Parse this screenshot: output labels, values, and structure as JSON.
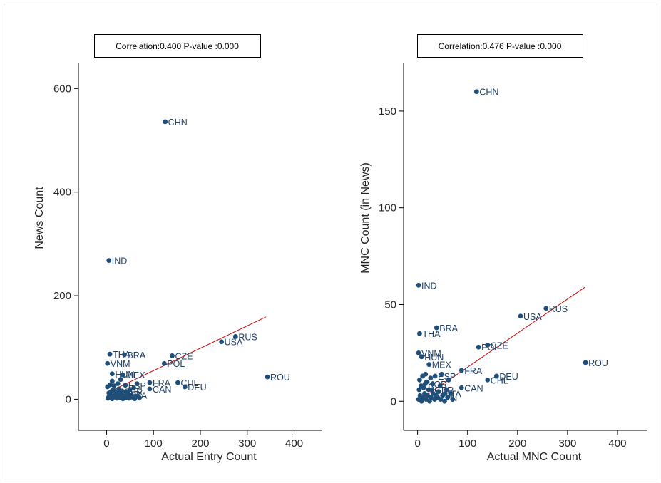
{
  "chart_data": [
    {
      "type": "scatter",
      "title": "",
      "annotation": "Correlation:0.400 P-value :0.000",
      "xlabel": "Actual Entry Count",
      "ylabel": "News Count",
      "xlim": [
        -60,
        460
      ],
      "ylim": [
        -60,
        650
      ],
      "xticks": [
        0,
        100,
        200,
        300,
        400
      ],
      "yticks": [
        0,
        200,
        400,
        600
      ],
      "grid": false,
      "marker_color": "#1f4e79",
      "fit_color": "#cc0000",
      "fit_line": {
        "x": [
          0,
          340
        ],
        "y": [
          12,
          159
        ]
      },
      "points": [
        {
          "label": "CHN",
          "x": 125,
          "y": 536
        },
        {
          "label": "IND",
          "x": 5,
          "y": 268
        },
        {
          "label": "RUS",
          "x": 275,
          "y": 121
        },
        {
          "label": "USA",
          "x": 245,
          "y": 111
        },
        {
          "label": "CZE",
          "x": 140,
          "y": 84
        },
        {
          "label": "THA",
          "x": 7,
          "y": 87
        },
        {
          "label": "BRA",
          "x": 38,
          "y": 86
        },
        {
          "label": "POL",
          "x": 123,
          "y": 69
        },
        {
          "label": "VNM",
          "x": 2,
          "y": 69
        },
        {
          "label": "HUN",
          "x": 12,
          "y": 49
        },
        {
          "label": "MEX",
          "x": 35,
          "y": 47
        },
        {
          "label": "ROU",
          "x": 343,
          "y": 43
        },
        {
          "label": "FRA",
          "x": 92,
          "y": 32
        },
        {
          "label": "CHL",
          "x": 152,
          "y": 32
        },
        {
          "label": "DEU",
          "x": 167,
          "y": 24
        },
        {
          "label": "CAN",
          "x": 92,
          "y": 20
        },
        {
          "label": "ESP",
          "x": 40,
          "y": 27
        },
        {
          "label": "ITA",
          "x": 52,
          "y": 8
        },
        {
          "label": "GBR",
          "x": 30,
          "y": 15
        },
        {
          "label": "KOR",
          "x": 25,
          "y": 10
        },
        {
          "label": "JPN",
          "x": 20,
          "y": 5
        },
        {
          "label": "",
          "x": 3,
          "y": 2
        },
        {
          "label": "",
          "x": 5,
          "y": 5
        },
        {
          "label": "",
          "x": 8,
          "y": 3
        },
        {
          "label": "",
          "x": 10,
          "y": 7
        },
        {
          "label": "",
          "x": 12,
          "y": 1
        },
        {
          "label": "",
          "x": 15,
          "y": 4
        },
        {
          "label": "",
          "x": 18,
          "y": 8
        },
        {
          "label": "",
          "x": 22,
          "y": 2
        },
        {
          "label": "",
          "x": 25,
          "y": 6
        },
        {
          "label": "",
          "x": 28,
          "y": 3
        },
        {
          "label": "",
          "x": 32,
          "y": 9
        },
        {
          "label": "",
          "x": 35,
          "y": 1
        },
        {
          "label": "",
          "x": 38,
          "y": 5
        },
        {
          "label": "",
          "x": 42,
          "y": 3
        },
        {
          "label": "",
          "x": 45,
          "y": 7
        },
        {
          "label": "",
          "x": 48,
          "y": 2
        },
        {
          "label": "",
          "x": 55,
          "y": 4
        },
        {
          "label": "",
          "x": 60,
          "y": 1
        },
        {
          "label": "",
          "x": 65,
          "y": 6
        },
        {
          "label": "",
          "x": 70,
          "y": 3
        },
        {
          "label": "",
          "x": 5,
          "y": 12
        },
        {
          "label": "",
          "x": 10,
          "y": 15
        },
        {
          "label": "",
          "x": 14,
          "y": 18
        },
        {
          "label": "",
          "x": 20,
          "y": 13
        },
        {
          "label": "",
          "x": 26,
          "y": 20
        },
        {
          "label": "",
          "x": 33,
          "y": 16
        },
        {
          "label": "",
          "x": 44,
          "y": 14
        },
        {
          "label": "",
          "x": 50,
          "y": 19
        },
        {
          "label": "",
          "x": 2,
          "y": 24
        },
        {
          "label": "",
          "x": 8,
          "y": 28
        },
        {
          "label": "",
          "x": 16,
          "y": 26
        },
        {
          "label": "",
          "x": 24,
          "y": 30
        },
        {
          "label": "",
          "x": 58,
          "y": 22
        },
        {
          "label": "",
          "x": 12,
          "y": 35
        },
        {
          "label": "",
          "x": 30,
          "y": 38
        },
        {
          "label": "",
          "x": 65,
          "y": 30
        }
      ]
    },
    {
      "type": "scatter",
      "title": "",
      "annotation": "Correlation:0.476 P-value :0.000",
      "xlabel": "Actual MNC Count",
      "ylabel": "MNC Count (in News)",
      "xlim": [
        -28,
        460
      ],
      "ylim": [
        -15,
        175
      ],
      "xticks": [
        0,
        100,
        200,
        300,
        400
      ],
      "yticks": [
        0,
        50,
        100,
        150
      ],
      "grid": false,
      "marker_color": "#1f4e79",
      "fit_color": "#cc0000",
      "fit_line": {
        "x": [
          0,
          335
        ],
        "y": [
          0,
          59
        ]
      },
      "points": [
        {
          "label": "CHN",
          "x": 118,
          "y": 160
        },
        {
          "label": "IND",
          "x": 2,
          "y": 60
        },
        {
          "label": "RUS",
          "x": 257,
          "y": 48
        },
        {
          "label": "USA",
          "x": 206,
          "y": 44
        },
        {
          "label": "BRA",
          "x": 38,
          "y": 38
        },
        {
          "label": "THA",
          "x": 4,
          "y": 35
        },
        {
          "label": "CZE",
          "x": 140,
          "y": 29
        },
        {
          "label": "POL",
          "x": 122,
          "y": 28
        },
        {
          "label": "VNM",
          "x": 2,
          "y": 25
        },
        {
          "label": "HUN",
          "x": 8,
          "y": 23
        },
        {
          "label": "ROU",
          "x": 336,
          "y": 20
        },
        {
          "label": "MEX",
          "x": 23,
          "y": 19
        },
        {
          "label": "FRA",
          "x": 88,
          "y": 16
        },
        {
          "label": "CHL",
          "x": 140,
          "y": 11
        },
        {
          "label": "DEU",
          "x": 158,
          "y": 13
        },
        {
          "label": "ESP",
          "x": 35,
          "y": 13
        },
        {
          "label": "CAN",
          "x": 88,
          "y": 7
        },
        {
          "label": "ITA",
          "x": 55,
          "y": 4
        },
        {
          "label": "GBR",
          "x": 28,
          "y": 6
        },
        {
          "label": "KOR",
          "x": 15,
          "y": 9
        },
        {
          "label": "JPN",
          "x": 40,
          "y": 2
        },
        {
          "label": "",
          "x": 2,
          "y": 1
        },
        {
          "label": "",
          "x": 5,
          "y": 3
        },
        {
          "label": "",
          "x": 8,
          "y": 0
        },
        {
          "label": "",
          "x": 11,
          "y": 2
        },
        {
          "label": "",
          "x": 14,
          "y": 4
        },
        {
          "label": "",
          "x": 17,
          "y": 1
        },
        {
          "label": "",
          "x": 20,
          "y": 3
        },
        {
          "label": "",
          "x": 24,
          "y": 0
        },
        {
          "label": "",
          "x": 27,
          "y": 2
        },
        {
          "label": "",
          "x": 31,
          "y": 4
        },
        {
          "label": "",
          "x": 34,
          "y": 1
        },
        {
          "label": "",
          "x": 37,
          "y": 3
        },
        {
          "label": "",
          "x": 42,
          "y": 5
        },
        {
          "label": "",
          "x": 46,
          "y": 1
        },
        {
          "label": "",
          "x": 50,
          "y": 3
        },
        {
          "label": "",
          "x": 54,
          "y": 0
        },
        {
          "label": "",
          "x": 60,
          "y": 2
        },
        {
          "label": "",
          "x": 66,
          "y": 4
        },
        {
          "label": "",
          "x": 70,
          "y": 1
        },
        {
          "label": "",
          "x": 3,
          "y": 6
        },
        {
          "label": "",
          "x": 7,
          "y": 8
        },
        {
          "label": "",
          "x": 12,
          "y": 7
        },
        {
          "label": "",
          "x": 18,
          "y": 10
        },
        {
          "label": "",
          "x": 22,
          "y": 6
        },
        {
          "label": "",
          "x": 30,
          "y": 9
        },
        {
          "label": "",
          "x": 45,
          "y": 8
        },
        {
          "label": "",
          "x": 58,
          "y": 6
        },
        {
          "label": "",
          "x": 4,
          "y": 11
        },
        {
          "label": "",
          "x": 10,
          "y": 13
        },
        {
          "label": "",
          "x": 16,
          "y": 14
        },
        {
          "label": "",
          "x": 26,
          "y": 12
        },
        {
          "label": "",
          "x": 48,
          "y": 14
        },
        {
          "label": "",
          "x": 62,
          "y": 11
        }
      ]
    }
  ]
}
